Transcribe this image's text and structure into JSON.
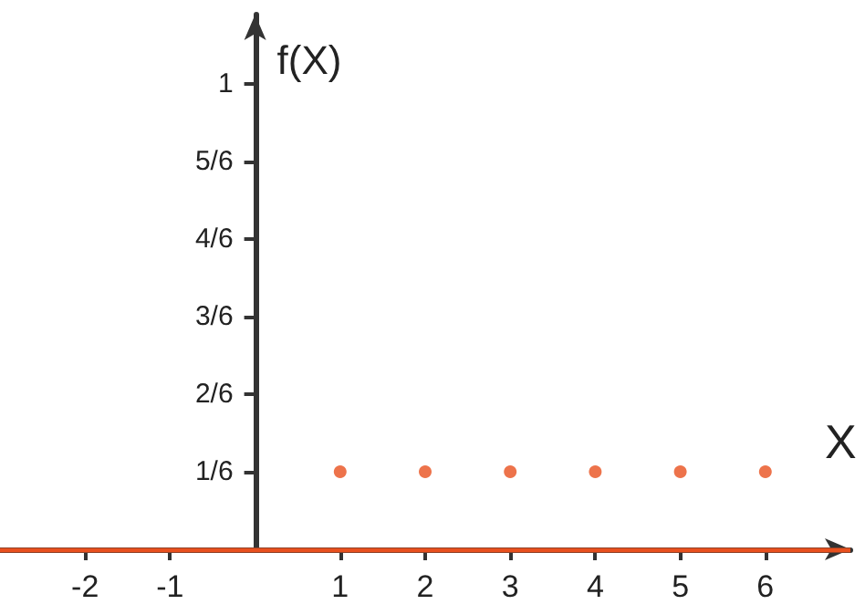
{
  "chart_data": {
    "type": "scatter",
    "xlabel": "X",
    "ylabel": "f(X)",
    "x": [
      1,
      2,
      3,
      4,
      5,
      6
    ],
    "series": [
      {
        "color": "#e8501e",
        "values": [
          0.1667,
          0.1667,
          0.1667,
          0.1667,
          0.1667,
          0.1667
        ]
      }
    ],
    "xlim": [
      -3,
      7
    ],
    "xticks": [
      -2,
      -1,
      1,
      2,
      3,
      4,
      5,
      6
    ],
    "ylim": [
      0,
      1.15
    ],
    "yticks": [
      {
        "value": 0.1667,
        "label": "1/6"
      },
      {
        "value": 0.3333,
        "label": "2/6"
      },
      {
        "value": 0.5,
        "label": "3/6"
      },
      {
        "value": 0.6667,
        "label": "4/6"
      },
      {
        "value": 0.8333,
        "label": "5/6"
      },
      1
    ],
    "ref_lines": [
      {
        "axis": "y",
        "value": 0,
        "color": "#e8501e"
      }
    ],
    "grid": false,
    "marker": "circle"
  }
}
